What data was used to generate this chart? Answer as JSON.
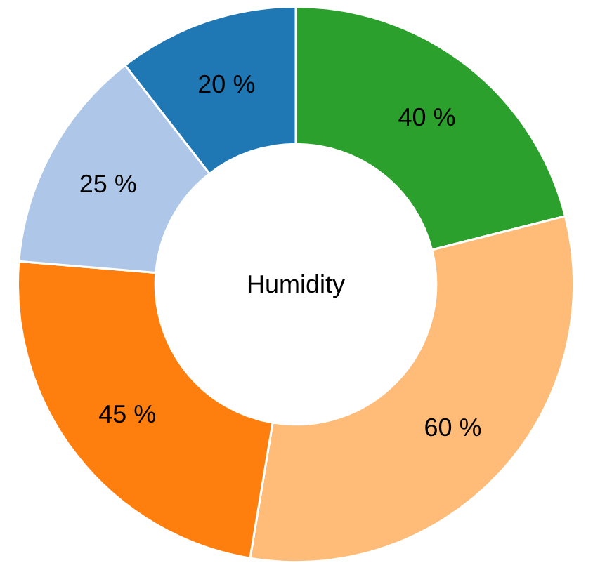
{
  "chart_data": {
    "type": "donut",
    "title": "Humidity",
    "categories": [
      null,
      null,
      null,
      null,
      null
    ],
    "values": [
      40,
      60,
      45,
      25,
      20
    ],
    "colors": [
      "#2ca02c",
      "#ffbb78",
      "#ff7f0e",
      "#aec7e8",
      "#1f77b4"
    ],
    "value_labels": [
      "40 %",
      "60 %",
      "45 %",
      "25 %",
      "20 %"
    ]
  }
}
